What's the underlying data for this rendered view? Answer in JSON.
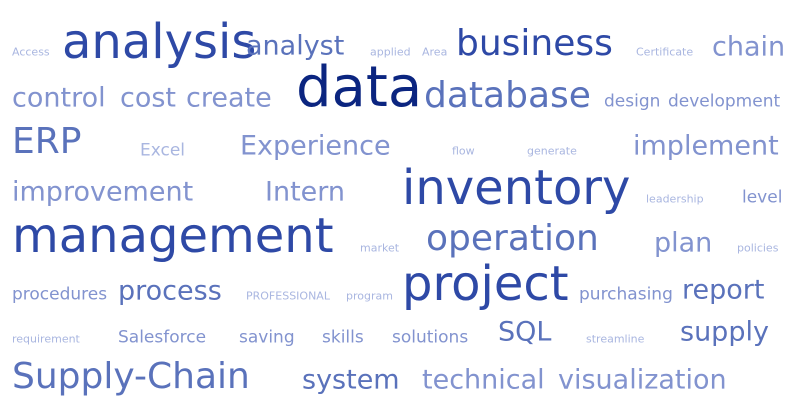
{
  "palette": {
    "darkest": "#0b2580",
    "dark": "#2e49a6",
    "mid": "#5a72bb",
    "light": "#8293cf",
    "pale": "#a9b6e0"
  },
  "words": [
    {
      "text": "Access",
      "shade": "pale"
    },
    {
      "text": "analysis",
      "shade": "dark"
    },
    {
      "text": "analyst",
      "shade": "mid"
    },
    {
      "text": "applied",
      "shade": "pale"
    },
    {
      "text": "Area",
      "shade": "pale"
    },
    {
      "text": "business",
      "shade": "dark"
    },
    {
      "text": "Certificate",
      "shade": "pale"
    },
    {
      "text": "chain",
      "shade": "light"
    },
    {
      "text": "control",
      "shade": "light"
    },
    {
      "text": "cost",
      "shade": "light"
    },
    {
      "text": "create",
      "shade": "light"
    },
    {
      "text": "data",
      "shade": "darkest"
    },
    {
      "text": "database",
      "shade": "mid"
    },
    {
      "text": "design",
      "shade": "light"
    },
    {
      "text": "development",
      "shade": "light"
    },
    {
      "text": "ERP",
      "shade": "mid"
    },
    {
      "text": "Excel",
      "shade": "pale"
    },
    {
      "text": "Experience",
      "shade": "light"
    },
    {
      "text": "flow",
      "shade": "pale"
    },
    {
      "text": "generate",
      "shade": "pale"
    },
    {
      "text": "implement",
      "shade": "light"
    },
    {
      "text": "improvement",
      "shade": "light"
    },
    {
      "text": "Intern",
      "shade": "light"
    },
    {
      "text": "inventory",
      "shade": "dark"
    },
    {
      "text": "leadership",
      "shade": "pale"
    },
    {
      "text": "level",
      "shade": "light"
    },
    {
      "text": "management",
      "shade": "dark"
    },
    {
      "text": "market",
      "shade": "pale"
    },
    {
      "text": "operation",
      "shade": "mid"
    },
    {
      "text": "plan",
      "shade": "light"
    },
    {
      "text": "policies",
      "shade": "pale"
    },
    {
      "text": "procedures",
      "shade": "light"
    },
    {
      "text": "process",
      "shade": "mid"
    },
    {
      "text": "PROFESSIONAL",
      "shade": "pale"
    },
    {
      "text": "program",
      "shade": "pale"
    },
    {
      "text": "project",
      "shade": "dark"
    },
    {
      "text": "purchasing",
      "shade": "light"
    },
    {
      "text": "report",
      "shade": "mid"
    },
    {
      "text": "requirement",
      "shade": "pale"
    },
    {
      "text": "Salesforce",
      "shade": "light"
    },
    {
      "text": "saving",
      "shade": "light"
    },
    {
      "text": "skills",
      "shade": "light"
    },
    {
      "text": "solutions",
      "shade": "light"
    },
    {
      "text": "SQL",
      "shade": "mid"
    },
    {
      "text": "streamline",
      "shade": "pale"
    },
    {
      "text": "supply",
      "shade": "mid"
    },
    {
      "text": "Supply-Chain",
      "shade": "mid"
    },
    {
      "text": "system",
      "shade": "mid"
    },
    {
      "text": "technical",
      "shade": "light"
    },
    {
      "text": "visualization",
      "shade": "light"
    }
  ]
}
